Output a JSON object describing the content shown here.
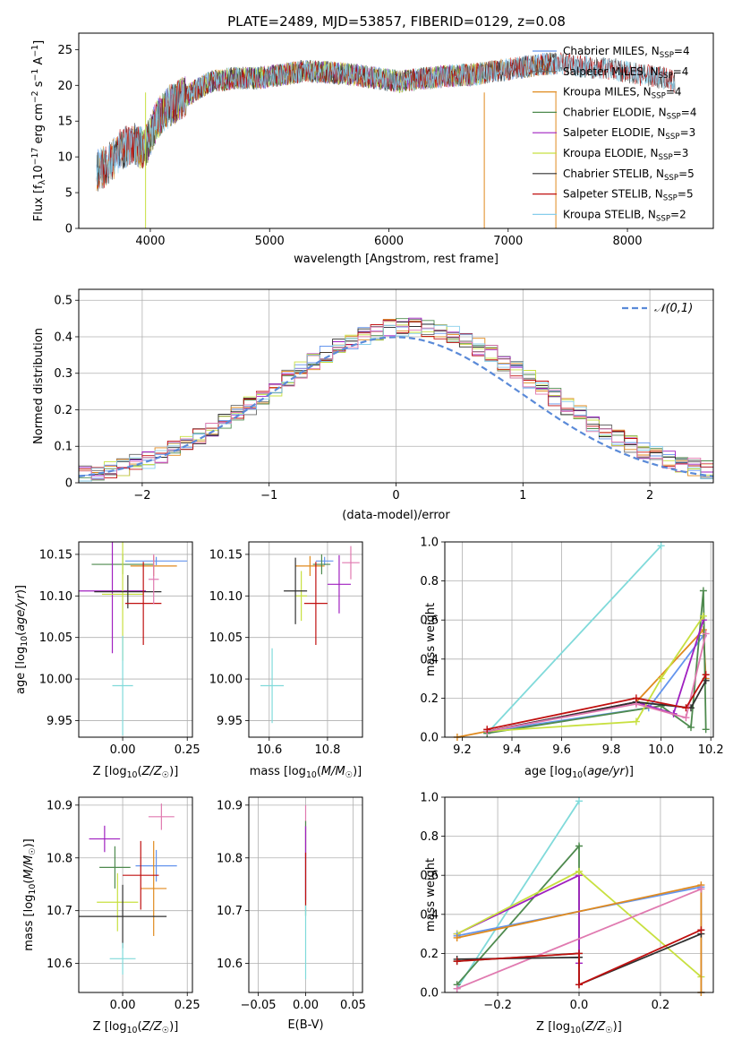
{
  "figure": {
    "title": "PLATE=2489, MJD=53857, FIBERID=0129, z=0.08"
  },
  "chart_data": [
    {
      "id": "spectrum",
      "type": "line",
      "xlabel": "wavelength [Angstrom, rest frame]",
      "ylabel": "Flux [f_λ 10^-17 erg cm^-2 s^-1 A^-1]",
      "xlim": [
        3400,
        8720
      ],
      "ylim": [
        0,
        27.3
      ],
      "xticks": [
        4000,
        5000,
        6000,
        7000,
        8000
      ],
      "yticks": [
        0,
        5,
        10,
        15,
        20,
        25
      ],
      "grid": false,
      "legend_position": "right",
      "series": [
        {
          "name": "Chabrier MILES, N_SSP=4",
          "color": "#6495ed",
          "x_range": [
            3550,
            7400
          ]
        },
        {
          "name": "Salpeter MILES, N_SSP=4",
          "color": "#696969",
          "x_range": [
            3550,
            7400
          ]
        },
        {
          "name": "Kroupa MILES, N_SSP=4",
          "color": "#e08a1e",
          "x_range": [
            3550,
            7400
          ]
        },
        {
          "name": "Chabrier ELODIE, N_SSP=4",
          "color": "#4e8a4e",
          "x_range": [
            3900,
            6800
          ]
        },
        {
          "name": "Salpeter ELODIE, N_SSP=3",
          "color": "#a020c0",
          "x_range": [
            3900,
            6800
          ]
        },
        {
          "name": "Kroupa ELODIE, N_SSP=3",
          "color": "#c8e040",
          "x_range": [
            3900,
            6800
          ]
        },
        {
          "name": "Chabrier STELIB, N_SSP=5",
          "color": "#303030",
          "x_range": [
            3550,
            8400
          ]
        },
        {
          "name": "Salpeter STELIB, N_SSP=5",
          "color": "#c01010",
          "x_range": [
            3550,
            8400
          ]
        },
        {
          "name": "Kroupa STELIB, N_SSP=2",
          "color": "#87ceeb",
          "x_range": [
            3550,
            8400
          ]
        }
      ],
      "observed_flux_profile": {
        "x": [
          3550,
          3650,
          3750,
          3850,
          3950,
          4050,
          4150,
          4250,
          4350,
          4500,
          4700,
          4900,
          5100,
          5300,
          5500,
          5700,
          5900,
          6100,
          6300,
          6500,
          6700,
          6900,
          7100,
          7300,
          7500,
          7700,
          7900,
          8100,
          8300,
          8400
        ],
        "y": [
          8,
          9,
          11,
          12,
          11,
          15,
          17,
          18,
          19,
          20.5,
          21,
          21,
          21.5,
          22,
          21.8,
          21.5,
          21,
          20.5,
          21,
          21.3,
          21.5,
          22,
          22.5,
          23,
          23,
          22.5,
          22.2,
          21.5,
          21,
          20.5
        ]
      }
    },
    {
      "id": "residuals",
      "type": "line",
      "xlabel": "(data-model)/error",
      "ylabel": "Normed distribution",
      "xlim": [
        -2.5,
        2.5
      ],
      "ylim": [
        0,
        0.53
      ],
      "xticks": [
        -2,
        -1,
        0,
        1,
        2
      ],
      "yticks": [
        0.0,
        0.1,
        0.2,
        0.3,
        0.4,
        0.5
      ],
      "grid": true,
      "legend_position": "top-right",
      "reference_curve": {
        "name": "𝒩(0,1)",
        "color": "#5a8ad8",
        "style": "dashed"
      },
      "bin_width": 0.1
    },
    {
      "id": "age-vs-Z",
      "type": "scatter",
      "xlabel": "Z [log10(Z/Z☉)]",
      "ylabel": "age [log10(age/yr)]",
      "xlim": [
        -0.17,
        0.27
      ],
      "ylim": [
        9.93,
        10.165
      ],
      "xticks": [
        0.0,
        0.25
      ],
      "xtick_labels": [
        "0.00",
        "0.25"
      ],
      "yticks": [
        9.95,
        10.0,
        10.05,
        10.1,
        10.15
      ],
      "ytick_labels": [
        "9.95",
        "10.00",
        "10.05",
        "10.10",
        "10.15"
      ],
      "grid": true,
      "points": [
        {
          "color": "#6495ed",
          "x": 0.13,
          "y": 10.142,
          "xerr": 0.12,
          "yerr": 0.005
        },
        {
          "color": "#e08a1e",
          "x": 0.12,
          "y": 10.136,
          "xerr": 0.09,
          "yerr": 0.012
        },
        {
          "color": "#4e8a4e",
          "x": 0.0,
          "y": 10.138,
          "xerr": 0.12,
          "yerr": 0.012
        },
        {
          "color": "#a020c0",
          "x": -0.04,
          "y": 10.106,
          "xerr": 0.13,
          "yerr": 0.075
        },
        {
          "color": "#c8e040",
          "x": 0.0,
          "y": 10.102,
          "xerr": 0.08,
          "yerr": 0.08
        },
        {
          "color": "#303030",
          "x": 0.02,
          "y": 10.105,
          "xerr": 0.13,
          "yerr": 0.02
        },
        {
          "color": "#c01010",
          "x": 0.08,
          "y": 10.091,
          "xerr": 0.07,
          "yerr": 0.05
        },
        {
          "color": "#e07ab0",
          "x": 0.12,
          "y": 10.12,
          "xerr": 0.02,
          "yerr": 0.03
        },
        {
          "color": "#80dada",
          "x": 0.0,
          "y": 9.992,
          "xerr": 0.04,
          "yerr": 0.06
        }
      ]
    },
    {
      "id": "age-vs-mass",
      "type": "scatter",
      "xlabel": "mass [log10(M/M☉)]",
      "ylabel": "",
      "xlim": [
        10.53,
        10.92
      ],
      "ylim": [
        9.93,
        10.165
      ],
      "xticks": [
        10.6,
        10.8
      ],
      "xtick_labels": [
        "10.6",
        "10.8"
      ],
      "yticks": [
        9.95,
        10.0,
        10.05,
        10.1,
        10.15
      ],
      "ytick_labels": [
        "9.95",
        "10.00",
        "10.05",
        "10.10",
        "10.15"
      ],
      "grid": true,
      "points": [
        {
          "color": "#6495ed",
          "x": 10.79,
          "y": 10.142,
          "xerr": 0.03,
          "yerr": 0.005
        },
        {
          "color": "#e08a1e",
          "x": 10.74,
          "y": 10.136,
          "xerr": 0.05,
          "yerr": 0.012
        },
        {
          "color": "#4e8a4e",
          "x": 10.78,
          "y": 10.138,
          "xerr": 0.03,
          "yerr": 0.012
        },
        {
          "color": "#a020c0",
          "x": 10.84,
          "y": 10.114,
          "xerr": 0.04,
          "yerr": 0.035
        },
        {
          "color": "#c8e040",
          "x": 10.71,
          "y": 10.1,
          "xerr": 0.02,
          "yerr": 0.03
        },
        {
          "color": "#303030",
          "x": 10.69,
          "y": 10.106,
          "xerr": 0.04,
          "yerr": 0.04
        },
        {
          "color": "#c01010",
          "x": 10.76,
          "y": 10.091,
          "xerr": 0.04,
          "yerr": 0.05
        },
        {
          "color": "#e07ab0",
          "x": 10.88,
          "y": 10.14,
          "xerr": 0.03,
          "yerr": 0.02
        },
        {
          "color": "#80dada",
          "x": 10.61,
          "y": 9.992,
          "xerr": 0.04,
          "yerr": 0.045
        }
      ]
    },
    {
      "id": "mass-vs-Z",
      "type": "scatter",
      "xlabel": "Z [log10(Z/Z☉)]",
      "ylabel": "mass [log10(M/M☉)]",
      "xlim": [
        -0.17,
        0.27
      ],
      "ylim": [
        10.545,
        10.915
      ],
      "xticks": [
        0.0,
        0.25
      ],
      "xtick_labels": [
        "0.00",
        "0.25"
      ],
      "yticks": [
        10.6,
        10.7,
        10.8,
        10.9
      ],
      "ytick_labels": [
        "10.6",
        "10.7",
        "10.8",
        "10.9"
      ],
      "grid": true,
      "points": [
        {
          "color": "#6495ed",
          "x": 0.13,
          "y": 10.785,
          "xerr": 0.08,
          "yerr": 0.03
        },
        {
          "color": "#e08a1e",
          "x": 0.12,
          "y": 10.742,
          "xerr": 0.05,
          "yerr": 0.09
        },
        {
          "color": "#4e8a4e",
          "x": -0.03,
          "y": 10.782,
          "xerr": 0.06,
          "yerr": 0.04
        },
        {
          "color": "#a020c0",
          "x": -0.07,
          "y": 10.836,
          "xerr": 0.06,
          "yerr": 0.025
        },
        {
          "color": "#c8e040",
          "x": -0.02,
          "y": 10.716,
          "xerr": 0.08,
          "yerr": 0.055
        },
        {
          "color": "#303030",
          "x": 0.0,
          "y": 10.689,
          "xerr": 0.17,
          "yerr": 0.06
        },
        {
          "color": "#c01010",
          "x": 0.07,
          "y": 10.767,
          "xerr": 0.07,
          "yerr": 0.065
        },
        {
          "color": "#e07ab0",
          "x": 0.15,
          "y": 10.878,
          "xerr": 0.05,
          "yerr": 0.025
        },
        {
          "color": "#80dada",
          "x": 0.0,
          "y": 10.609,
          "xerr": 0.05,
          "yerr": 0.03
        }
      ]
    },
    {
      "id": "mass-vs-ebv",
      "type": "scatter",
      "xlabel": "E(B-V)",
      "ylabel": "",
      "xlim": [
        -0.06,
        0.06
      ],
      "ylim": [
        10.545,
        10.915
      ],
      "xticks": [
        -0.05,
        0.0,
        0.05
      ],
      "xtick_labels": [
        "−0.05",
        "0.00",
        "0.05"
      ],
      "yticks": [
        10.6,
        10.7,
        10.8,
        10.9
      ],
      "ytick_labels": [
        "10.6",
        "10.7",
        "10.8",
        "10.9"
      ],
      "grid": true,
      "points": [
        {
          "color": "#e07ab0",
          "x": 0.0,
          "y": 10.85,
          "xerr": 0.0,
          "yerr": 0.05
        },
        {
          "color": "#4e8a4e",
          "x": 0.0,
          "y": 10.78,
          "xerr": 0.0,
          "yerr": 0.09
        },
        {
          "color": "#a020c0",
          "x": 0.0,
          "y": 10.79,
          "xerr": 0.0,
          "yerr": 0.07
        },
        {
          "color": "#c01010",
          "x": 0.0,
          "y": 10.76,
          "xerr": 0.0,
          "yerr": 0.05
        },
        {
          "color": "#80dada",
          "x": 0.0,
          "y": 10.64,
          "xerr": 0.0,
          "yerr": 0.07
        }
      ]
    },
    {
      "id": "weight-vs-age",
      "type": "line",
      "xlabel": "age [log10(age/yr)]",
      "ylabel": "mass weight",
      "xlim": [
        9.13,
        10.21
      ],
      "ylim": [
        0,
        1.0
      ],
      "xticks": [
        9.2,
        9.4,
        9.6,
        9.8,
        10.0,
        10.2
      ],
      "xtick_labels": [
        "9.2",
        "9.4",
        "9.6",
        "9.8",
        "10.0",
        "10.2"
      ],
      "yticks": [
        0.0,
        0.2,
        0.4,
        0.6,
        0.8,
        1.0
      ],
      "ytick_labels": [
        "0.0",
        "0.2",
        "0.4",
        "0.6",
        "0.8",
        "1.0"
      ],
      "grid": true,
      "series": [
        {
          "color": "#80dada",
          "x": [
            9.3,
            10.0
          ],
          "y": [
            0.02,
            0.98
          ]
        },
        {
          "color": "#6495ed",
          "x": [
            9.3,
            9.95,
            10.17,
            10.18
          ],
          "y": [
            0.03,
            0.15,
            0.52,
            0.3
          ]
        },
        {
          "color": "#e08a1e",
          "x": [
            9.18,
            9.9,
            10.17,
            10.18
          ],
          "y": [
            0.0,
            0.18,
            0.55,
            0.3
          ]
        },
        {
          "color": "#4e8a4e",
          "x": [
            9.3,
            10.0,
            10.12,
            10.17,
            10.18
          ],
          "y": [
            0.02,
            0.16,
            0.05,
            0.75,
            0.04
          ]
        },
        {
          "color": "#a020c0",
          "x": [
            9.3,
            9.9,
            10.05,
            10.17
          ],
          "y": [
            0.03,
            0.18,
            0.12,
            0.6
          ]
        },
        {
          "color": "#c8e040",
          "x": [
            9.3,
            9.9,
            10.0,
            10.17
          ],
          "y": [
            0.03,
            0.08,
            0.3,
            0.62
          ]
        },
        {
          "color": "#303030",
          "x": [
            9.3,
            9.9,
            10.12,
            10.18
          ],
          "y": [
            0.03,
            0.18,
            0.15,
            0.29
          ]
        },
        {
          "color": "#e07ab0",
          "x": [
            9.3,
            9.9,
            10.1,
            10.18
          ],
          "y": [
            0.03,
            0.17,
            0.1,
            0.53
          ]
        },
        {
          "color": "#c01010",
          "x": [
            9.3,
            9.9,
            10.1,
            10.18
          ],
          "y": [
            0.04,
            0.2,
            0.15,
            0.32
          ]
        }
      ]
    },
    {
      "id": "weight-vs-Z",
      "type": "line",
      "xlabel": "Z [log10(Z/Z☉)]",
      "ylabel": "mass weight",
      "xlim": [
        -0.33,
        0.33
      ],
      "ylim": [
        0,
        1.0
      ],
      "xticks": [
        -0.2,
        0.0,
        0.2
      ],
      "xtick_labels": [
        "−0.2",
        "0.0",
        "0.2"
      ],
      "yticks": [
        0.0,
        0.2,
        0.4,
        0.6,
        0.8,
        1.0
      ],
      "ytick_labels": [
        "0.0",
        "0.2",
        "0.4",
        "0.6",
        "0.8",
        "1.0"
      ],
      "grid": true,
      "series": [
        {
          "color": "#80dada",
          "x": [
            -0.3,
            0.0
          ],
          "y": [
            0.02,
            0.98
          ]
        },
        {
          "color": "#4e8a4e",
          "x": [
            -0.3,
            0.0,
            0.0,
            -0.3
          ],
          "y": [
            0.04,
            0.75,
            0.2,
            0.16
          ]
        },
        {
          "color": "#a020c0",
          "x": [
            -0.3,
            0.0,
            0.0
          ],
          "y": [
            0.3,
            0.6,
            0.15
          ]
        },
        {
          "color": "#c8e040",
          "x": [
            -0.3,
            0.0,
            0.3
          ],
          "y": [
            0.3,
            0.62,
            0.08
          ]
        },
        {
          "color": "#6495ed",
          "x": [
            -0.3,
            0.3,
            0.3
          ],
          "y": [
            0.29,
            0.54,
            0.0
          ]
        },
        {
          "color": "#e08a1e",
          "x": [
            -0.3,
            0.3,
            0.3
          ],
          "y": [
            0.28,
            0.55,
            0.0
          ]
        },
        {
          "color": "#e07ab0",
          "x": [
            -0.3,
            0.3
          ],
          "y": [
            0.02,
            0.53
          ]
        },
        {
          "color": "#303030",
          "x": [
            -0.3,
            0.0,
            0.0,
            0.3
          ],
          "y": [
            0.17,
            0.18,
            0.04,
            0.3
          ]
        },
        {
          "color": "#c01010",
          "x": [
            -0.3,
            0.0,
            0.0,
            0.3
          ],
          "y": [
            0.16,
            0.2,
            0.04,
            0.32
          ]
        }
      ]
    }
  ]
}
